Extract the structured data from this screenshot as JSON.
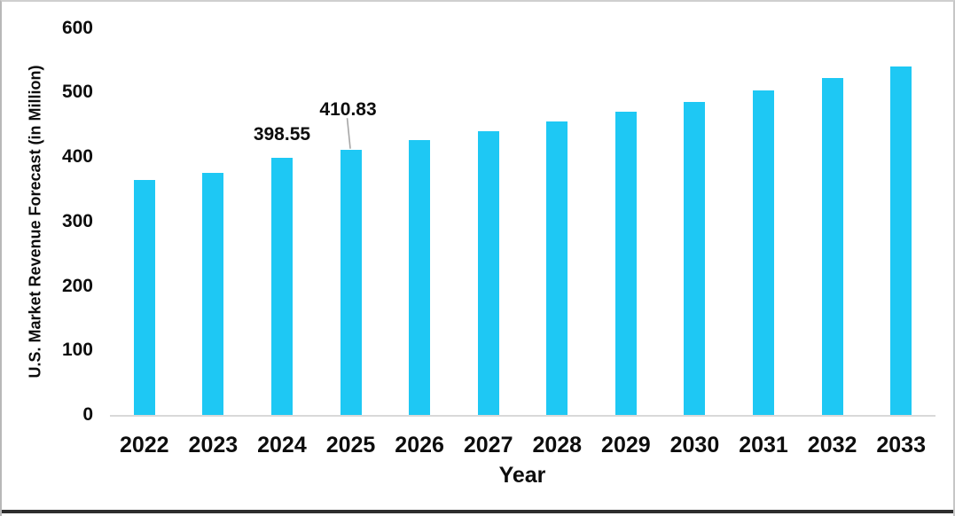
{
  "chart_data": {
    "type": "bar",
    "title": "",
    "xlabel": "Year",
    "ylabel": "U.S. Market Revenue Forecast (in Million)",
    "categories": [
      "2022",
      "2023",
      "2024",
      "2025",
      "2026",
      "2027",
      "2028",
      "2029",
      "2030",
      "2031",
      "2032",
      "2033"
    ],
    "values": [
      365,
      376,
      398.55,
      410.83,
      426,
      440,
      455,
      470,
      486,
      503,
      522,
      541
    ],
    "ylim": [
      0,
      600
    ],
    "y_ticks": [
      0,
      100,
      200,
      300,
      400,
      500,
      600
    ],
    "grid": false,
    "legend_position": "none",
    "data_labels": [
      {
        "category": "2024",
        "text": "398.55",
        "placement": "above"
      },
      {
        "category": "2025",
        "text": "410.83",
        "placement": "above-offset-leader"
      }
    ]
  },
  "colors": {
    "bar": "#1ec8f4",
    "axis_line": "#d9d9d9",
    "leader_line": "#a6a6a6",
    "text": "#0d0d0d",
    "frame_border": "#c6c6c6",
    "bottom_rule": "#2e2e2e"
  }
}
